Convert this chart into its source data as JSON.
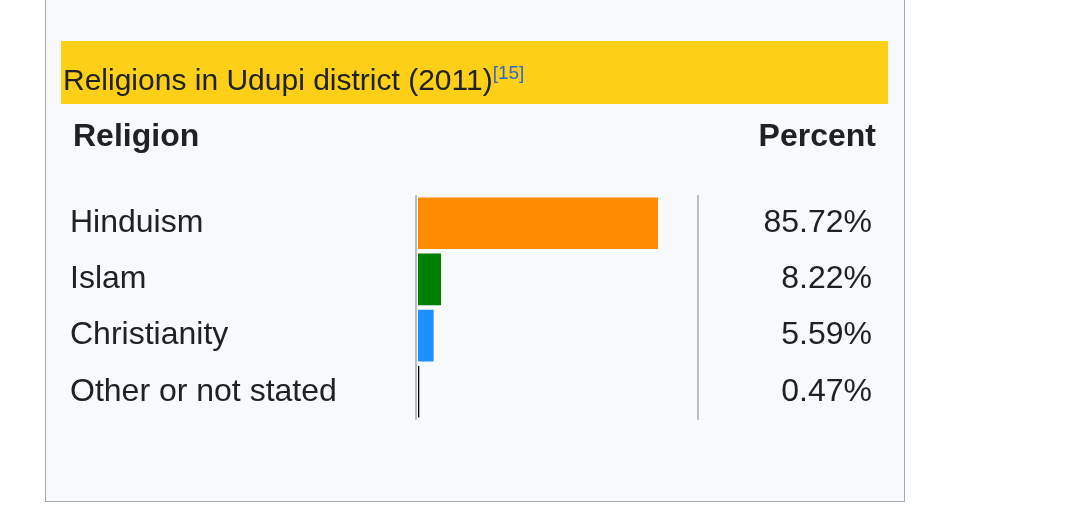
{
  "chart_data": {
    "type": "bar",
    "orientation": "horizontal",
    "title": "Religions in Udupi district (2011)$^{[15]}$",
    "annotations": [
      "Religion",
      "Percent"
    ],
    "categories": [
      "Hinduism",
      "Islam",
      "Christianity",
      "Other or not stated"
    ],
    "values": [
      85.72,
      8.22,
      5.59,
      0.47
    ],
    "colors": [
      "#ff8c00",
      "#008000",
      "#1e90ff",
      "#000000"
    ],
    "value_labels": [
      "85.72%",
      "8.22%",
      "5.59%",
      "0.47%"
    ],
    "xlim": [
      0,
      100
    ],
    "tick_labels": "y"
  }
}
